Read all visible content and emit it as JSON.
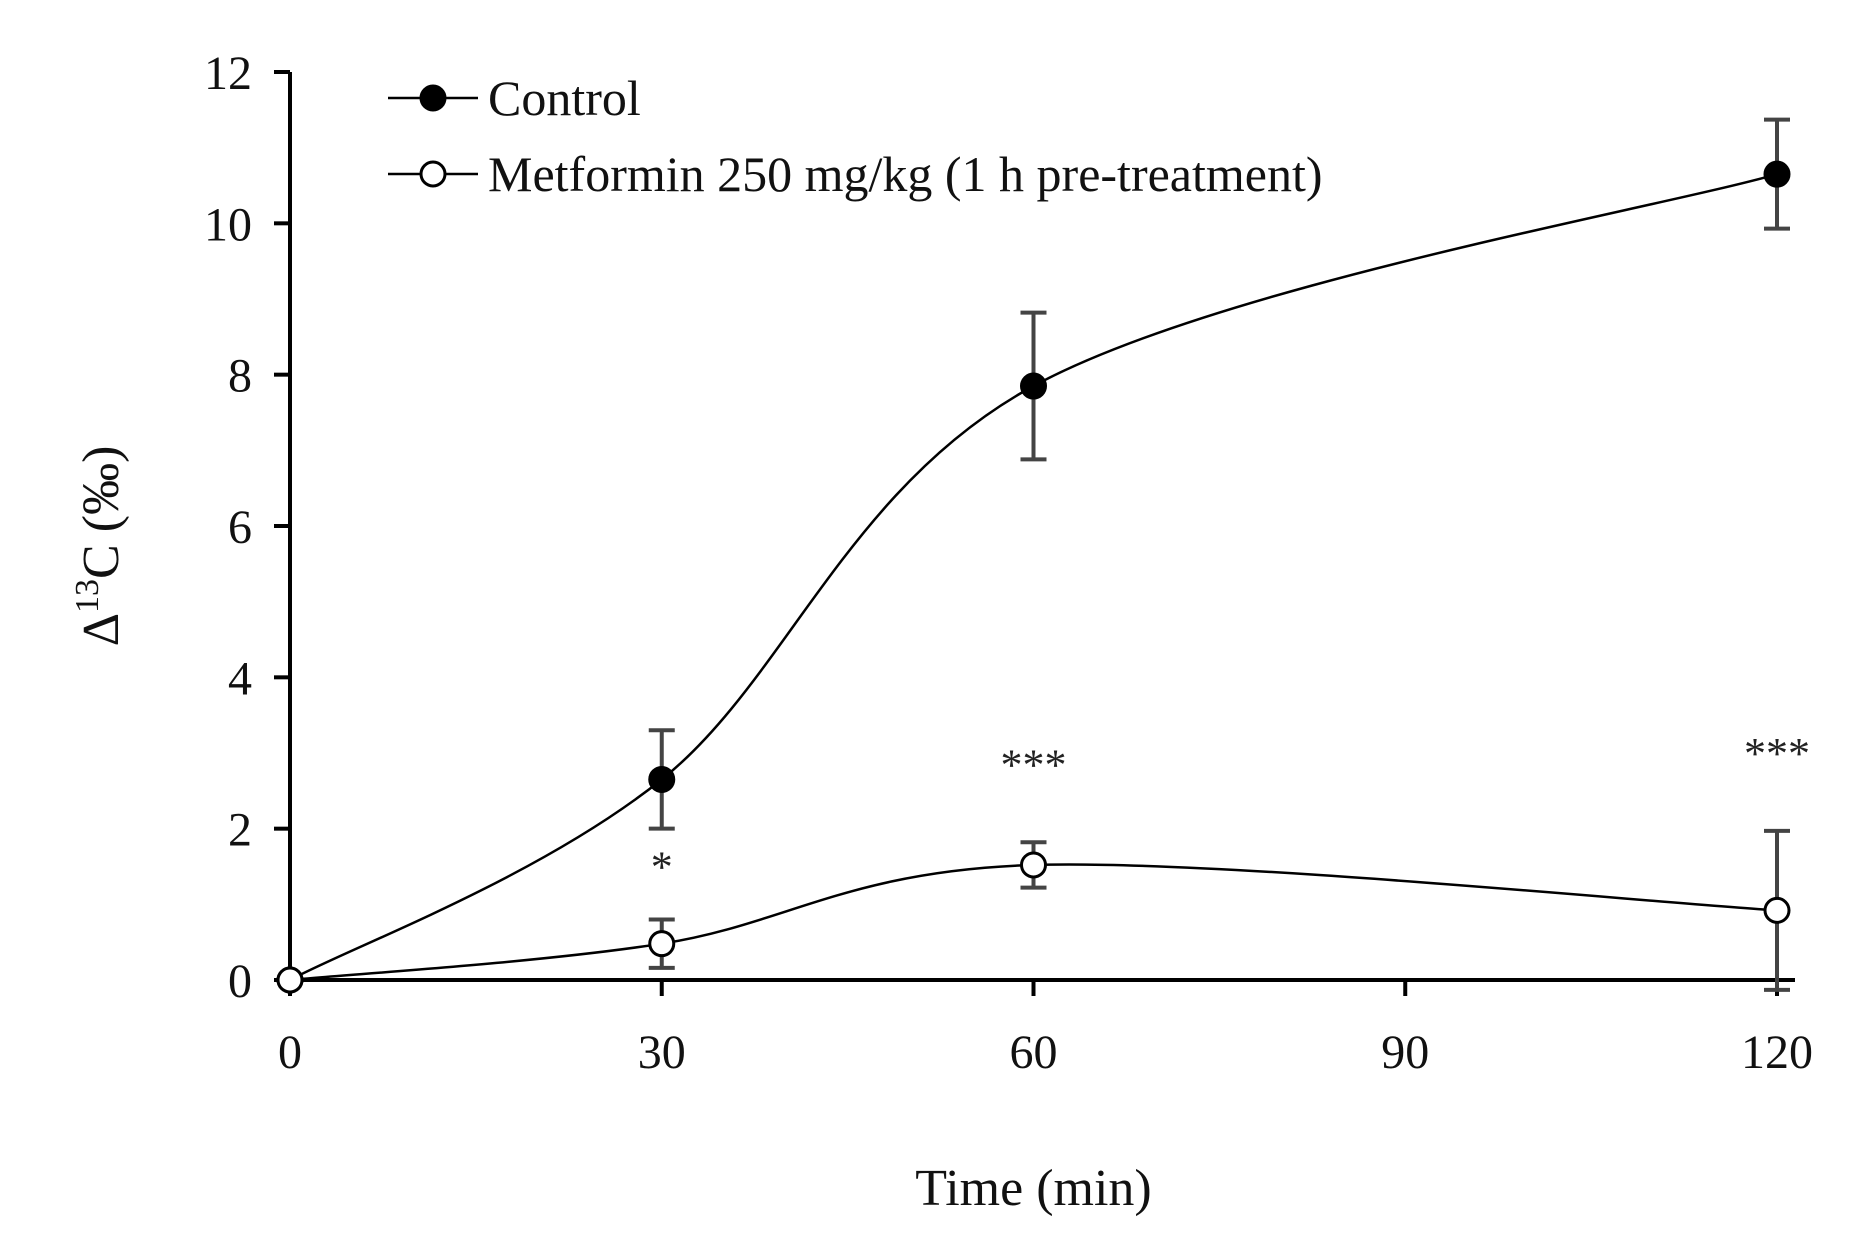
{
  "chart_data": {
    "type": "line",
    "title": "",
    "xlabel": "Time (min)",
    "ylabel": {
      "prefix": "Δ",
      "superscript": "13",
      "main": "C",
      "unit": "(‰)"
    },
    "xlim": [
      0,
      120
    ],
    "ylim": [
      0,
      12
    ],
    "xticks": [
      0,
      30,
      60,
      90,
      120
    ],
    "yticks": [
      0,
      2,
      4,
      6,
      8,
      10,
      12
    ],
    "grid": false,
    "legend_position": "top-left",
    "series": [
      {
        "name": "Control",
        "marker": "filled-circle",
        "color": "#000000",
        "x": [
          0,
          30,
          60,
          120
        ],
        "y": [
          0,
          2.65,
          7.85,
          10.65
        ],
        "error": [
          0,
          0.65,
          0.97,
          0.72
        ]
      },
      {
        "name": "Metformin 250 mg/kg (1 h pre-treatment)",
        "marker": "open-circle",
        "color": "#000000",
        "x": [
          0,
          30,
          60,
          120
        ],
        "y": [
          0,
          0.48,
          1.52,
          0.92
        ],
        "error": [
          0,
          0.32,
          0.3,
          1.05
        ]
      }
    ],
    "annotations": [
      {
        "text": "*",
        "x": 30,
        "y": 1.3
      },
      {
        "text": "***",
        "x": 60,
        "y": 2.65
      },
      {
        "text": "***",
        "x": 120,
        "y": 2.8
      }
    ]
  }
}
